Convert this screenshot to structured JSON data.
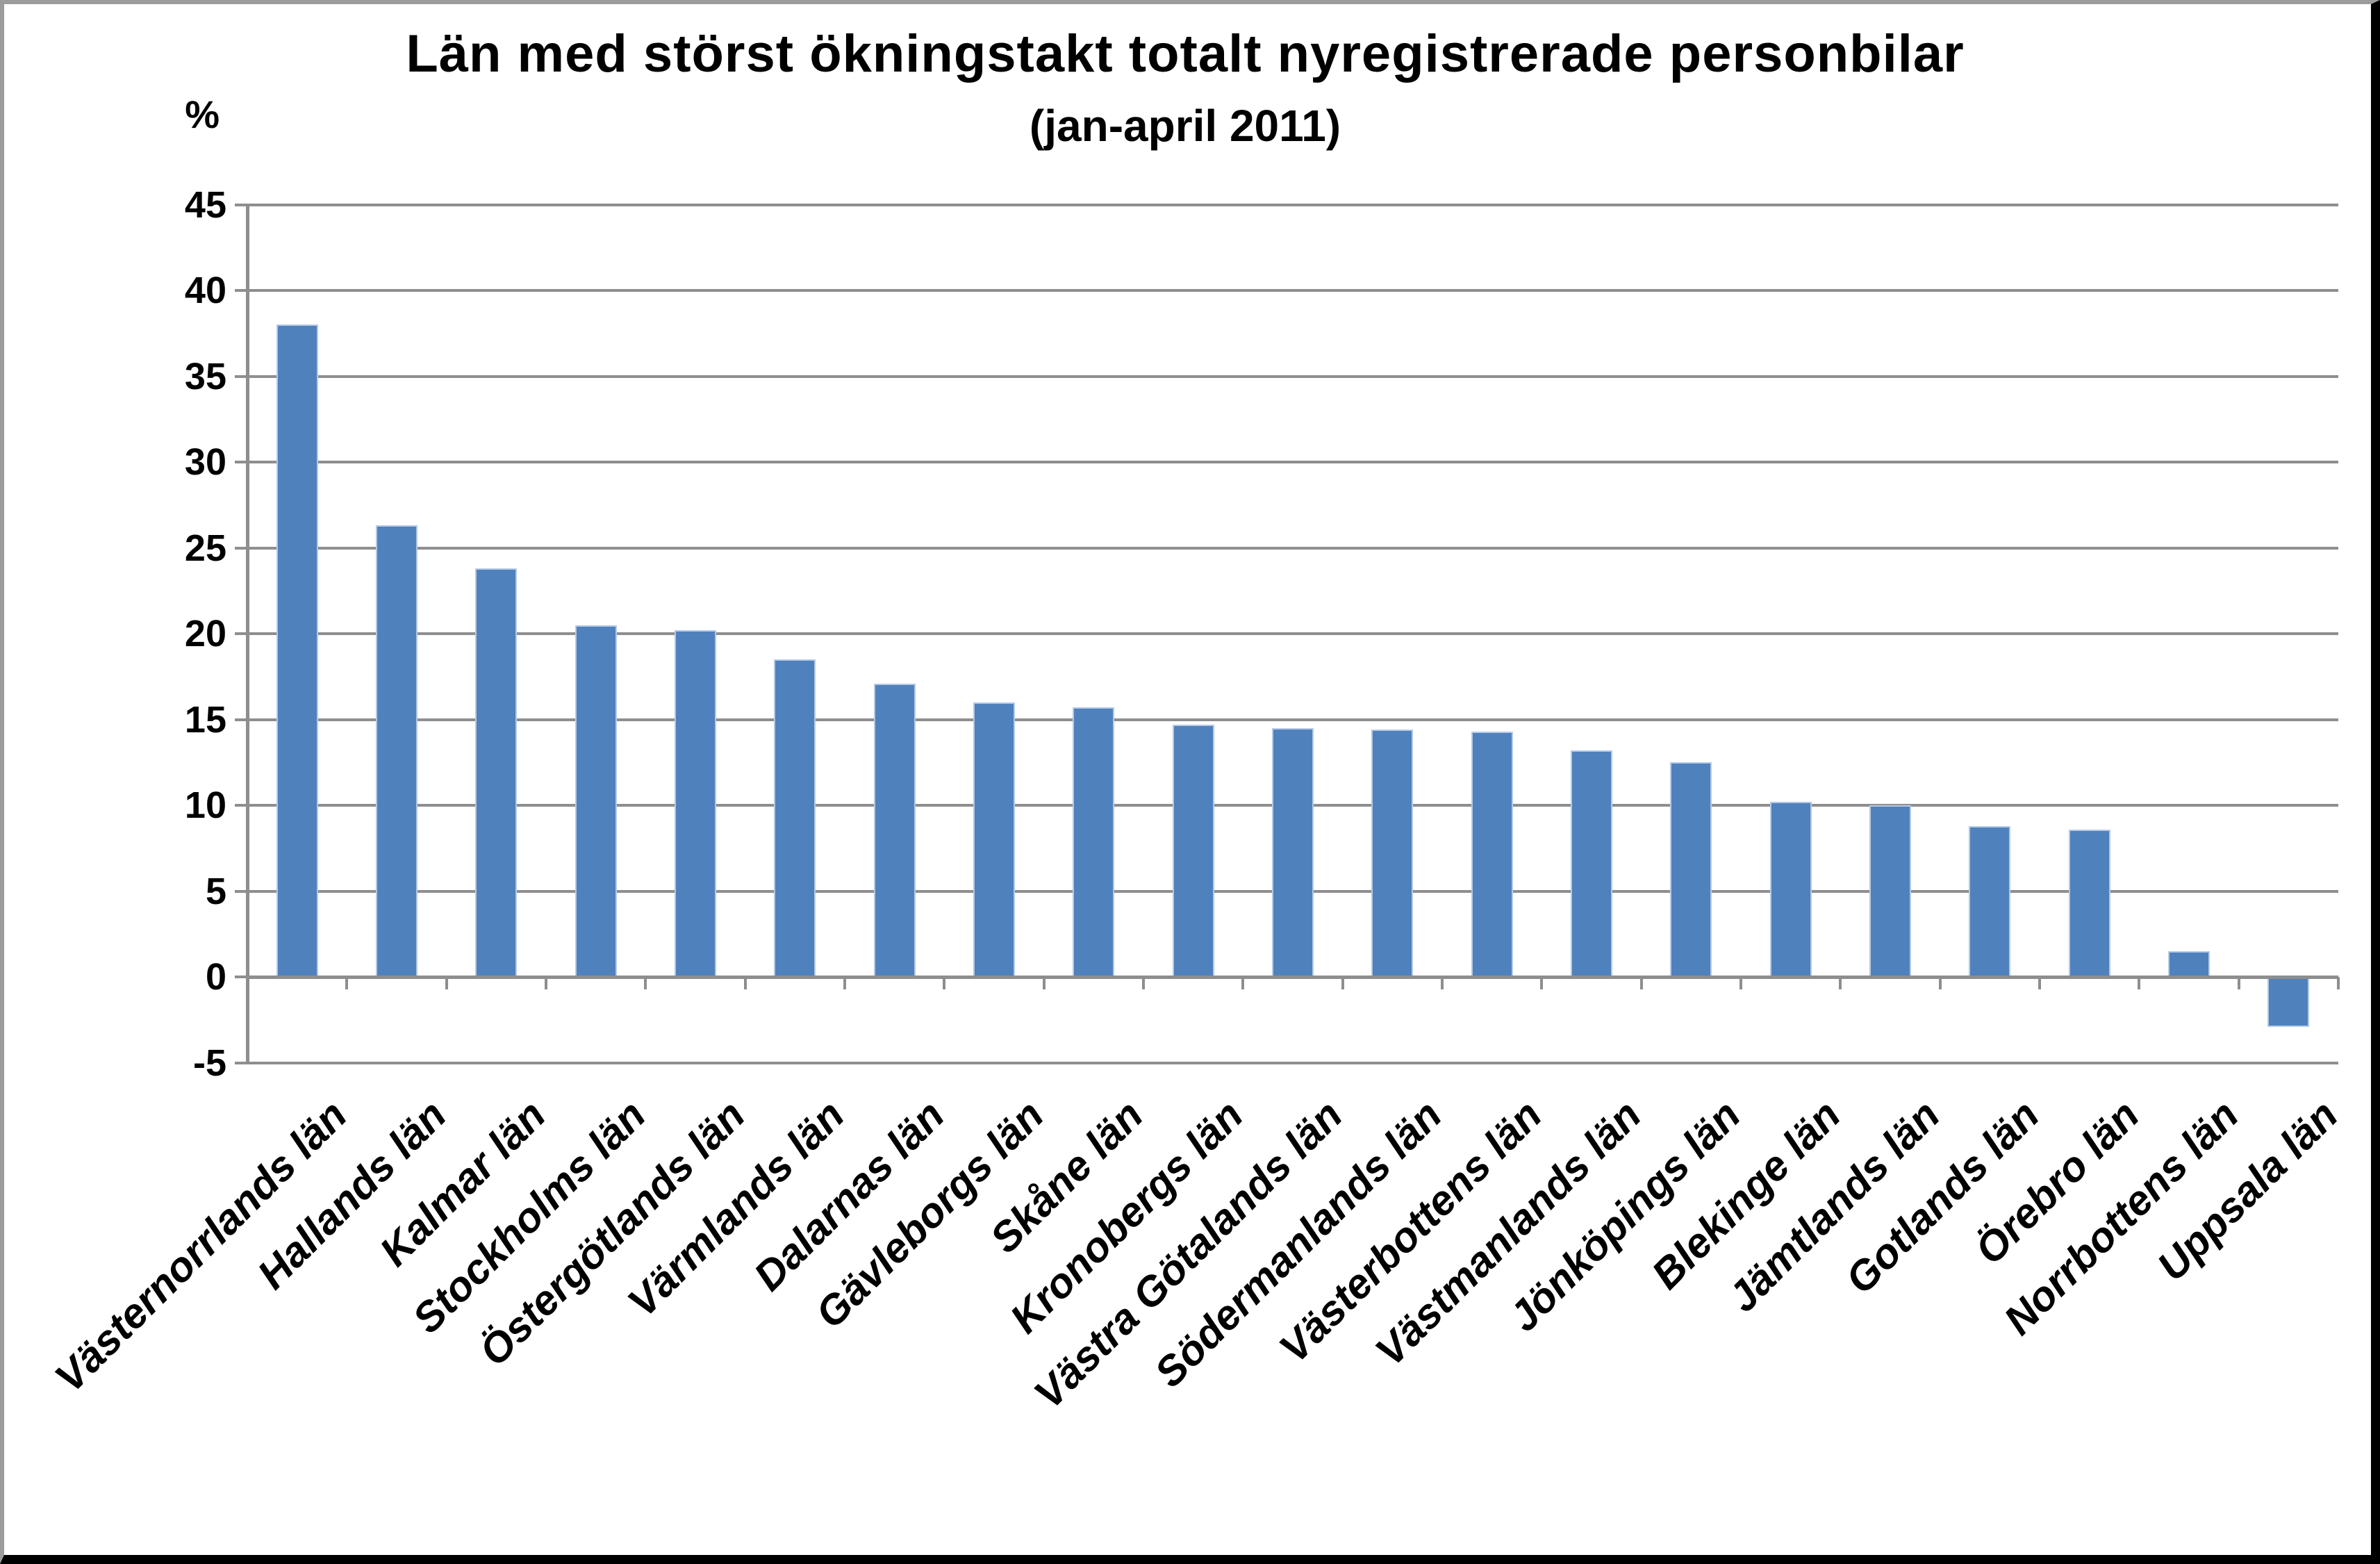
{
  "chart_data": {
    "type": "bar",
    "title": "Län med störst ökningstakt totalt nyregistrerade personbilar",
    "subtitle": "(jan-april 2011)",
    "unit_label": "%",
    "categories": [
      "Västernorrlands län",
      "Hallands län",
      "Kalmar län",
      "Stockholms län",
      "Östergötlands län",
      "Värmlands län",
      "Dalarnas län",
      "Gävleborgs län",
      "Skåne län",
      "Kronobergs län",
      "Västra Götalands län",
      "Södermanlands län",
      "Västerbottens län",
      "Västmanlands län",
      "Jönköpings län",
      "Blekinge län",
      "Jämtlands län",
      "Gotlands län",
      "Örebro län",
      "Norrbottens län",
      "Uppsala län"
    ],
    "values": [
      38.0,
      26.3,
      23.8,
      20.5,
      20.2,
      18.5,
      17.1,
      16.0,
      15.7,
      14.7,
      14.5,
      14.4,
      14.3,
      13.2,
      12.5,
      10.2,
      10.0,
      8.8,
      8.6,
      1.5,
      -2.9
    ],
    "ylim": [
      -5,
      45
    ],
    "yticks": [
      45,
      40,
      35,
      30,
      25,
      20,
      15,
      10,
      5,
      0,
      -5
    ],
    "grid": true,
    "legend": "none",
    "colors": {
      "bar_fill": "#4F81BD",
      "bar_border": "#B5C9E4",
      "gridline": "#8E8E8E",
      "axis": "#8E8E8E",
      "text": "#000000",
      "frame_light": "#9C9C9C",
      "frame_dark": "#000000"
    }
  }
}
